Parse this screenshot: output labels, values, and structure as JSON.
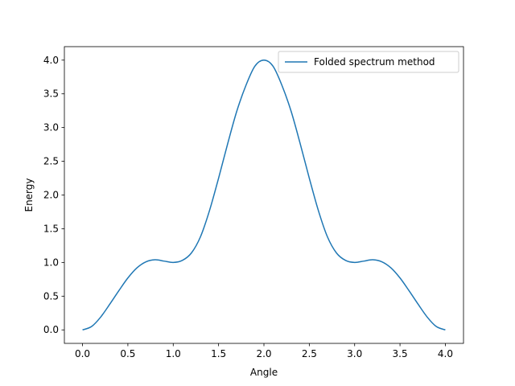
{
  "chart_data": {
    "type": "line",
    "title": "",
    "xlabel": "Angle",
    "ylabel": "Energy",
    "xlim": [
      -0.2,
      4.2
    ],
    "ylim": [
      -0.2,
      4.2
    ],
    "xticks": [
      0.0,
      0.5,
      1.0,
      1.5,
      2.0,
      2.5,
      3.0,
      3.5,
      4.0
    ],
    "xtick_labels": [
      "0.0",
      "0.5",
      "1.0",
      "1.5",
      "2.0",
      "2.5",
      "3.0",
      "3.5",
      "4.0"
    ],
    "yticks": [
      0.0,
      0.5,
      1.0,
      1.5,
      2.0,
      2.5,
      3.0,
      3.5,
      4.0
    ],
    "ytick_labels": [
      "0.0",
      "0.5",
      "1.0",
      "1.5",
      "2.0",
      "2.5",
      "3.0",
      "3.5",
      "4.0"
    ],
    "grid": false,
    "legend": {
      "placement": "upper-right",
      "entries": [
        "Folded spectrum method"
      ]
    },
    "series": [
      {
        "name": "Folded spectrum method",
        "color": "#1f77b4",
        "x": [
          0.0,
          0.1,
          0.2,
          0.3,
          0.4,
          0.5,
          0.6,
          0.7,
          0.8,
          0.9,
          1.0,
          1.1,
          1.2,
          1.3,
          1.4,
          1.5,
          1.6,
          1.7,
          1.8,
          1.9,
          2.0,
          2.1,
          2.2,
          2.3,
          2.4,
          2.5,
          2.6,
          2.7,
          2.8,
          2.9,
          3.0,
          3.1,
          3.2,
          3.3,
          3.4,
          3.5,
          3.6,
          3.7,
          3.8,
          3.9,
          4.0
        ],
        "y": [
          0.0,
          0.05,
          0.19,
          0.38,
          0.58,
          0.77,
          0.92,
          1.01,
          1.04,
          1.02,
          1.0,
          1.03,
          1.14,
          1.38,
          1.77,
          2.25,
          2.76,
          3.24,
          3.62,
          3.91,
          4.0,
          3.91,
          3.62,
          3.24,
          2.76,
          2.25,
          1.77,
          1.38,
          1.14,
          1.03,
          1.0,
          1.02,
          1.04,
          1.01,
          0.92,
          0.77,
          0.58,
          0.38,
          0.19,
          0.05,
          0.0
        ]
      }
    ]
  }
}
